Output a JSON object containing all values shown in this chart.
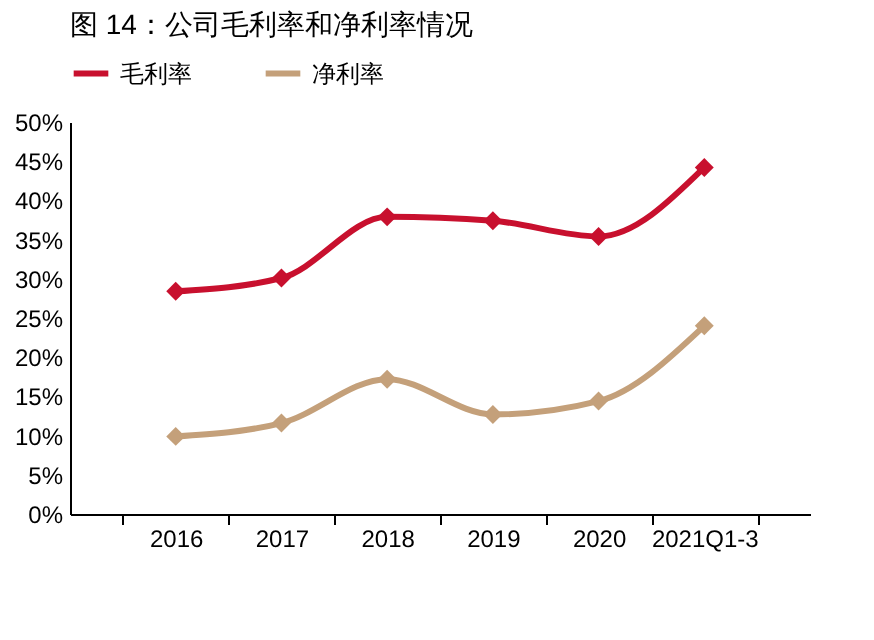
{
  "chart_data": {
    "type": "line",
    "title": "图 14：公司毛利率和净利率情况",
    "categories": [
      "2016",
      "2017",
      "2018",
      "2019",
      "2020",
      "2021Q1-3"
    ],
    "series": [
      {
        "name": "毛利率",
        "color": "#c8102e",
        "values": [
          28.4,
          30.1,
          37.9,
          37.4,
          35.4,
          44.2
        ]
      },
      {
        "name": "净利率",
        "color": "#c4a07a",
        "values": [
          9.9,
          11.6,
          17.2,
          12.7,
          14.4,
          24.0
        ]
      }
    ],
    "ylim": [
      0,
      50
    ],
    "yticks": [
      {
        "value": 0,
        "label": "0%"
      },
      {
        "value": 5,
        "label": "5%"
      },
      {
        "value": 10,
        "label": "10%"
      },
      {
        "value": 15,
        "label": "15%"
      },
      {
        "value": 20,
        "label": "20%"
      },
      {
        "value": 25,
        "label": "25%"
      },
      {
        "value": 30,
        "label": "30%"
      },
      {
        "value": 35,
        "label": "35%"
      },
      {
        "value": 40,
        "label": "40%"
      },
      {
        "value": 45,
        "label": "45%"
      },
      {
        "value": 50,
        "label": "50%"
      }
    ],
    "grid": false,
    "legend": "top",
    "marker": "diamond",
    "line_style": "solid"
  }
}
